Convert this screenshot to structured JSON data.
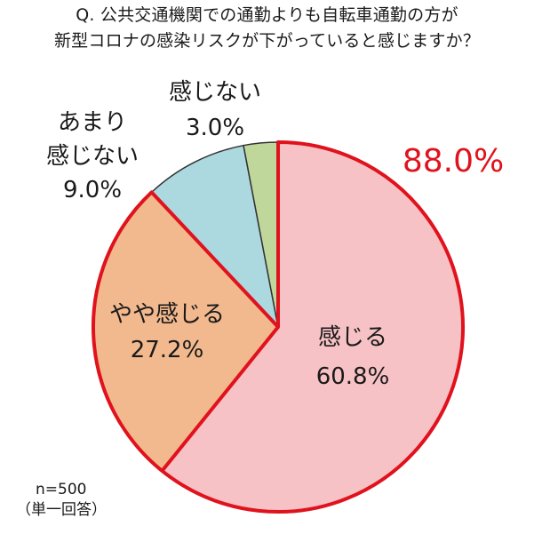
{
  "header": {
    "question_line1": "Q. 公共交通機関での通勤よりも自転車通勤の方が",
    "question_line2": "新型コロナの感染リスクが下がっていると感じますか？"
  },
  "chart_data": {
    "type": "pie",
    "title": "Q. 公共交通機関での通勤よりも自転車通勤の方が新型コロナの感染リスクが下がっていると感じますか？",
    "slices": [
      {
        "label": "感じる",
        "value": 60.8,
        "display": "60.8%",
        "color": "#f7c2c5"
      },
      {
        "label": "やや感じる",
        "value": 27.2,
        "display": "27.2%",
        "color": "#f2b98e"
      },
      {
        "label": "あまり感じない",
        "value": 9.0,
        "display": "9.0%",
        "color": "#acd8e0"
      },
      {
        "label": "感じない",
        "value": 3.0,
        "display": "3.0%",
        "color": "#c0d79c"
      }
    ],
    "label_lines": {
      "感じる": [
        "感じる",
        "60.8%"
      ],
      "やや感じる": [
        "やや感じる",
        "27.2%"
      ],
      "あまり感じない": [
        "あまり",
        "感じない",
        "9.0%"
      ],
      "感じない": [
        "感じない",
        "3.0%"
      ]
    },
    "highlight": {
      "label": "88.0%",
      "value": 88.0,
      "color": "#e0121d",
      "covers": [
        "感じる",
        "やや感じる"
      ]
    },
    "start": "12 o'clock",
    "direction": "clockwise"
  },
  "footer": {
    "sample_size": "n=500",
    "answer_type": "（単一回答）"
  }
}
